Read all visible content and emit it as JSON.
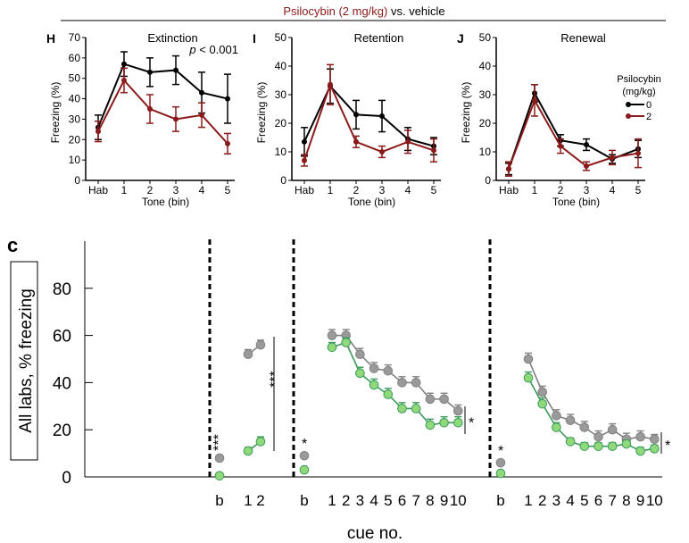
{
  "header": {
    "title_drug": "Psilocybin (2 mg/kg)",
    "title_rest": " vs. vehicle",
    "drug_color": "#8b1a1a"
  },
  "colors": {
    "vehicle": "#000000",
    "psilocybin": "#8b1a1a",
    "grey_series": "#9a9a9a",
    "green_series": "#8fd97a",
    "green_line": "#3a9a5a"
  },
  "legend": {
    "title_line1": "Psilocybin",
    "title_line2": "(mg/kg)",
    "entries": [
      "0",
      "2"
    ]
  },
  "chart_data": [
    {
      "type": "line",
      "panel": "H",
      "title": "Extinction",
      "annotation": "p < 0.001",
      "annotation_p": "p",
      "annotation_rest": " < 0.001",
      "xlabel": "Tone (bin)",
      "ylabel": "Freezing (%)",
      "categories": [
        "Hab",
        "1",
        "2",
        "3",
        "4",
        "5"
      ],
      "ylim": [
        0,
        70
      ],
      "yticks": [
        "0",
        "10",
        "20",
        "30",
        "40",
        "50",
        "60",
        "70"
      ],
      "series": [
        {
          "name": "0",
          "values": [
            26,
            57,
            53,
            54,
            43,
            40
          ],
          "errors": [
            6,
            6,
            7,
            7,
            10,
            12
          ]
        },
        {
          "name": "2",
          "values": [
            24,
            49,
            35,
            30,
            32,
            18
          ],
          "errors": [
            5,
            6,
            7,
            6,
            6,
            5
          ]
        }
      ]
    },
    {
      "type": "line",
      "panel": "I",
      "title": "Retention",
      "xlabel": "Tone (bin)",
      "ylabel": "Freezing (%)",
      "categories": [
        "Hab",
        "1",
        "2",
        "3",
        "4",
        "5"
      ],
      "ylim": [
        0,
        50
      ],
      "yticks": [
        "0",
        "10",
        "20",
        "30",
        "40",
        "50"
      ],
      "series": [
        {
          "name": "0",
          "values": [
            13.5,
            33,
            23,
            22.5,
            14.5,
            12
          ],
          "errors": [
            5,
            6,
            5,
            5.5,
            4,
            3
          ]
        },
        {
          "name": "2",
          "values": [
            7,
            33.5,
            13.5,
            10,
            13.5,
            10.5
          ],
          "errors": [
            2,
            7,
            2,
            2,
            4,
            4
          ]
        }
      ]
    },
    {
      "type": "line",
      "panel": "J",
      "title": "Renewal",
      "xlabel": "Tone (bin)",
      "ylabel": "Freezing (%)",
      "categories": [
        "Hab",
        "1",
        "2",
        "3",
        "4",
        "5"
      ],
      "ylim": [
        0,
        50
      ],
      "yticks": [
        "0",
        "10",
        "20",
        "30",
        "40",
        "50"
      ],
      "series": [
        {
          "name": "0",
          "values": [
            4,
            30.5,
            14,
            12.5,
            7.5,
            11
          ],
          "errors": [
            2,
            3,
            2,
            2,
            1.5,
            3
          ]
        },
        {
          "name": "2",
          "values": [
            4,
            28,
            12,
            5,
            8,
            9.5
          ],
          "errors": [
            2.5,
            5.5,
            2.5,
            1.5,
            2.5,
            5
          ]
        }
      ]
    },
    {
      "type": "line",
      "panel": "c",
      "ylabel": "All labs, % freezing",
      "xlabel": "cue no.",
      "ylim": [
        0,
        100
      ],
      "yticks": [
        "0",
        "20",
        "40",
        "60",
        "80"
      ],
      "groups": [
        {
          "name": "group1",
          "categories": [
            "b",
            "1",
            "2"
          ],
          "grey": {
            "b": 8,
            "values": [
              52,
              56
            ],
            "errors": [
              2,
              2
            ]
          },
          "green": {
            "b": 0.5,
            "values": [
              11,
              15
            ],
            "errors": [
              1.5,
              2
            ]
          },
          "sig_b": "***",
          "sig_group": "***"
        },
        {
          "name": "group2",
          "categories": [
            "b",
            "1",
            "2",
            "3",
            "4",
            "5",
            "6",
            "7",
            "8",
            "9",
            "10"
          ],
          "grey": {
            "b": 9,
            "values": [
              60,
              60,
              52,
              46,
              45,
              40,
              40,
              33,
              33,
              28
            ],
            "errors": [
              2.5,
              2.5,
              2.5,
              2.5,
              2.5,
              2.5,
              2.5,
              2.5,
              2.5,
              2.5
            ]
          },
          "green": {
            "b": 3,
            "values": [
              55,
              57,
              44,
              39,
              35,
              29,
              29,
              22,
              23,
              23
            ],
            "errors": [
              2,
              2,
              2.5,
              2.5,
              2.5,
              2.5,
              2.5,
              2.5,
              2.5,
              2.5
            ]
          },
          "sig_b": "*",
          "sig_group": "*"
        },
        {
          "name": "group3",
          "categories": [
            "b",
            "1",
            "2",
            "3",
            "4",
            "5",
            "6",
            "7",
            "8",
            "9",
            "10"
          ],
          "grey": {
            "b": 6,
            "values": [
              50,
              36,
              26,
              24,
              21,
              17,
              20,
              16,
              17,
              16
            ],
            "errors": [
              2.5,
              2.5,
              2.5,
              2.5,
              2.5,
              2.5,
              2.5,
              2.5,
              2.5,
              2
            ]
          },
          "green": {
            "b": 1.5,
            "values": [
              42,
              31,
              21,
              15,
              13,
              13,
              13,
              14,
              11,
              12
            ],
            "errors": [
              2.5,
              2.5,
              2,
              1.5,
              1.5,
              1.5,
              1.5,
              1.5,
              1.5,
              1.5
            ]
          },
          "sig_b": "*",
          "sig_group": "*"
        }
      ]
    }
  ]
}
